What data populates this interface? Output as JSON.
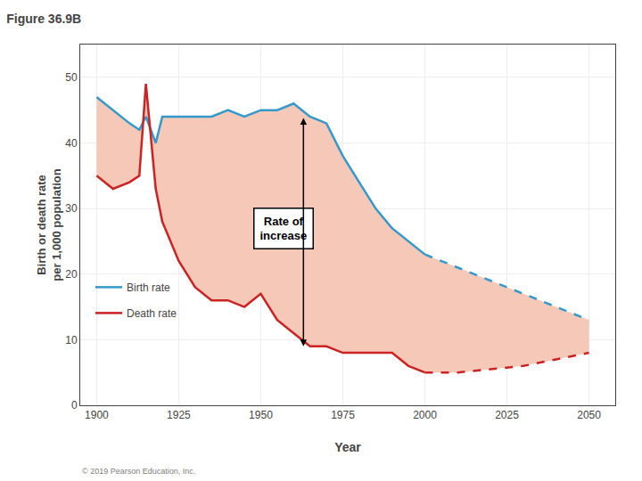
{
  "chart_data": {
    "type": "line",
    "title": "Figure 36.9B",
    "xlabel": "Year",
    "ylabel": "Birth or death rate\nper 1,000 population",
    "footnote": "© 2019 Pearson Education, Inc.",
    "xlim": [
      1895,
      2058
    ],
    "xticks": [
      1900,
      1925,
      1950,
      1975,
      2000,
      2025,
      2050
    ],
    "ylim": [
      0,
      55
    ],
    "yticks": [
      0,
      10,
      20,
      30,
      40,
      50
    ],
    "grid": true,
    "legend": "lower left",
    "fill_color": "#f5c8b8",
    "series": [
      {
        "name": "Birth rate",
        "color": "#3399cc",
        "line_style": "solid",
        "x": [
          1900,
          1905,
          1910,
          1913,
          1915,
          1918,
          1920,
          1925,
          1930,
          1935,
          1940,
          1945,
          1950,
          1955,
          1960,
          1965,
          1970,
          1975,
          1980,
          1985,
          1990,
          1995,
          2000
        ],
        "values": [
          47,
          45,
          43,
          42,
          44,
          40,
          44,
          44,
          44,
          44,
          45,
          44,
          45,
          45,
          46,
          44,
          43,
          38,
          34,
          30,
          27,
          25,
          23
        ]
      },
      {
        "name": "Birth rate",
        "color": "#3399cc",
        "line_style": "dashed",
        "x": [
          2000,
          2010,
          2020,
          2030,
          2040,
          2050
        ],
        "values": [
          23,
          21,
          19,
          17,
          15,
          13
        ]
      },
      {
        "name": "Death rate",
        "color": "#cc2222",
        "line_style": "solid",
        "x": [
          1900,
          1905,
          1910,
          1913,
          1915,
          1918,
          1920,
          1925,
          1930,
          1935,
          1940,
          1945,
          1950,
          1955,
          1960,
          1965,
          1970,
          1975,
          1980,
          1985,
          1990,
          1995,
          2000
        ],
        "values": [
          35,
          33,
          34,
          35,
          49,
          33,
          28,
          22,
          18,
          16,
          16,
          15,
          17,
          13,
          11,
          9,
          9,
          8,
          8,
          8,
          8,
          6,
          5
        ]
      },
      {
        "name": "Death rate",
        "color": "#cc2222",
        "line_style": "dashed",
        "x": [
          2000,
          2010,
          2020,
          2030,
          2040,
          2050
        ],
        "values": [
          5,
          5,
          5.5,
          6,
          7,
          8
        ]
      }
    ],
    "annotations": [
      {
        "text": "Rate of\nincrease",
        "x": 1957,
        "y": 27
      },
      {
        "arrow": "both",
        "x": 1963,
        "y_start": 44,
        "y_end": 9
      }
    ]
  }
}
